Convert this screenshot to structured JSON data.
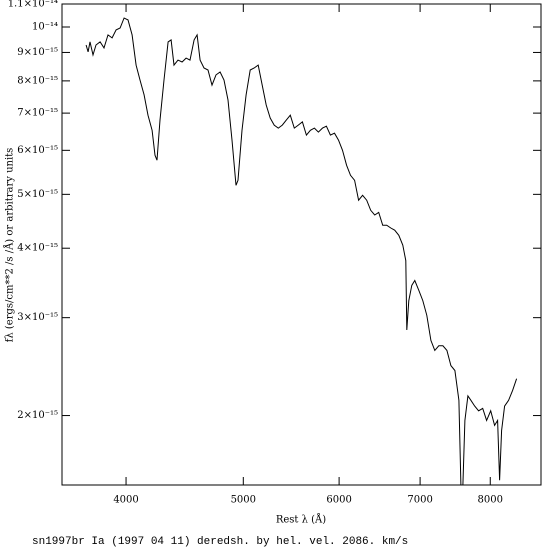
{
  "chart_data": {
    "type": "line",
    "xlabel": "Rest λ (Å)",
    "ylabel": "fλ (ergs/cm**2 /s /Å) or arbitrary units",
    "caption": "sn1997br Ia (1997 04 11) deredsh. by hel. vel.  2086. km/s",
    "xscale": "log",
    "yscale": "log",
    "color": "#000000",
    "xlim": [
      3541,
      8811
    ],
    "ylim": [
      1.5e-15,
      1.1e-14
    ],
    "xticks": [
      4000,
      5000,
      6000,
      7000,
      8000
    ],
    "yticks": [
      {
        "value": 2e-15,
        "label": "2×10⁻¹⁵"
      },
      {
        "value": 3e-15,
        "label": "3×10⁻¹⁵"
      },
      {
        "value": 4e-15,
        "label": "4×10⁻¹⁵"
      },
      {
        "value": 5e-15,
        "label": "5×10⁻¹⁵"
      },
      {
        "value": 6e-15,
        "label": "6×10⁻¹⁵"
      },
      {
        "value": 7e-15,
        "label": "7×10⁻¹⁵"
      },
      {
        "value": 8e-15,
        "label": "8×10⁻¹⁵"
      },
      {
        "value": 9e-15,
        "label": "9×10⁻¹⁵"
      },
      {
        "value": 1e-14,
        "label": "10⁻¹⁴"
      },
      {
        "value": 1.1e-14,
        "label": "1.1×10⁻¹⁴"
      }
    ],
    "x": [
      3707,
      3721,
      3735,
      3756,
      3778,
      3807,
      3836,
      3865,
      3895,
      3925,
      3955,
      3985,
      4015,
      4046,
      4077,
      4108,
      4140,
      4171,
      4203,
      4227,
      4243,
      4267,
      4300,
      4333,
      4358,
      4382,
      4416,
      4450,
      4484,
      4518,
      4553,
      4579,
      4605,
      4640,
      4675,
      4711,
      4747,
      4784,
      4820,
      4857,
      4894,
      4931,
      4950,
      4988,
      5027,
      5066,
      5105,
      5144,
      5183,
      5223,
      5263,
      5303,
      5344,
      5385,
      5426,
      5468,
      5510,
      5552,
      5595,
      5638,
      5681,
      5725,
      5768,
      5813,
      5857,
      5902,
      5948,
      5993,
      6039,
      6086,
      6132,
      6180,
      6227,
      6275,
      6323,
      6372,
      6420,
      6470,
      6519,
      6569,
      6620,
      6670,
      6722,
      6773,
      6812,
      6825,
      6851,
      6890,
      6930,
      6983,
      7036,
      7090,
      7145,
      7199,
      7254,
      7310,
      7366,
      7422,
      7479,
      7536,
      7565,
      7594,
      7623,
      7667,
      7711,
      7766,
      7825,
      7885,
      7945,
      8006,
      8067,
      8113,
      8144,
      8175,
      8221,
      8284,
      8348,
      8411
    ],
    "values": [
      9.28e-15,
      9.02e-15,
      9.4e-15,
      8.91e-15,
      9.28e-15,
      9.4e-15,
      9.17e-15,
      9.68e-15,
      9.56e-15,
      9.88e-15,
      9.96e-15,
      1.038e-14,
      1.03e-14,
      9.68e-15,
      8.54e-15,
      8.03e-15,
      7.55e-15,
      6.94e-15,
      6.52e-15,
      5.88e-15,
      5.76e-15,
      6.8e-15,
      8.03e-15,
      9.4e-15,
      9.48e-15,
      8.54e-15,
      8.72e-15,
      8.65e-15,
      8.79e-15,
      8.72e-15,
      9.48e-15,
      9.68e-15,
      8.72e-15,
      8.44e-15,
      8.37e-15,
      7.86e-15,
      8.2e-15,
      8.3e-15,
      8.03e-15,
      7.39e-15,
      6.26e-15,
      5.19e-15,
      5.3e-15,
      6.52e-15,
      7.55e-15,
      8.37e-15,
      8.44e-15,
      8.54e-15,
      7.86e-15,
      7.24e-15,
      6.86e-15,
      6.66e-15,
      6.58e-15,
      6.66e-15,
      6.8e-15,
      6.94e-15,
      6.58e-15,
      6.66e-15,
      6.75e-15,
      6.39e-15,
      6.52e-15,
      6.58e-15,
      6.47e-15,
      6.58e-15,
      6.63e-15,
      6.39e-15,
      6.44e-15,
      6.26e-15,
      6e-15,
      5.64e-15,
      5.41e-15,
      5.3e-15,
      4.88e-15,
      4.98e-15,
      4.88e-15,
      4.68e-15,
      4.59e-15,
      4.64e-15,
      4.4e-15,
      4.4e-15,
      4.35e-15,
      4.31e-15,
      4.22e-15,
      4.05e-15,
      3.8e-15,
      2.85e-15,
      3.22e-15,
      3.43e-15,
      3.5e-15,
      3.36e-15,
      3.22e-15,
      3.03e-15,
      2.73e-15,
      2.62e-15,
      2.67e-15,
      2.67e-15,
      2.62e-15,
      2.46e-15,
      2.41e-15,
      2.13e-15,
      1.5e-15,
      1.5e-15,
      1.96e-15,
      2.17e-15,
      2.13e-15,
      2.08e-15,
      2.04e-15,
      2.06e-15,
      1.96e-15,
      2.04e-15,
      1.92e-15,
      1.96e-15,
      1.53e-15,
      1.88e-15,
      2.08e-15,
      2.13e-15,
      2.22e-15,
      2.33e-15
    ]
  }
}
